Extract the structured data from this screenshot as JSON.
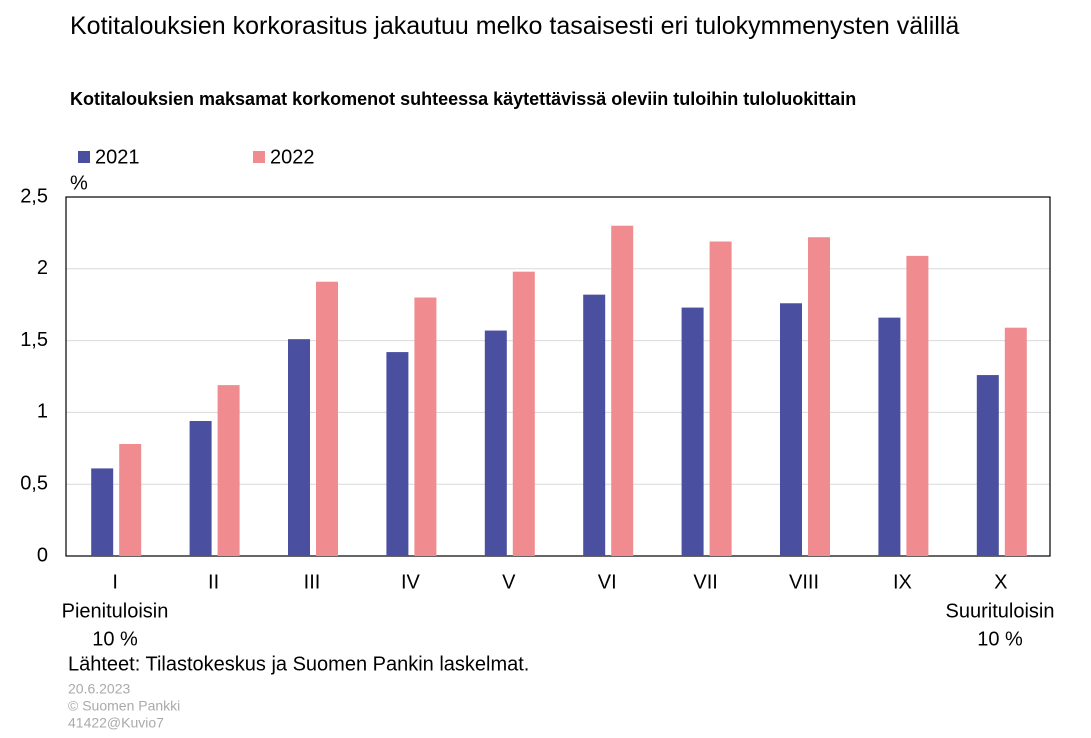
{
  "chart_data": {
    "type": "bar",
    "title": "Kotitalouksien korkorasitus jakautuu melko tasaisesti eri tulokymmenysten välillä",
    "subtitle": "Kotitalouksien maksamat korkomenot suhteessa käytettävissä oleviin tuloihin tuloluokittain",
    "y_label": "%",
    "categories": [
      "I",
      "II",
      "III",
      "IV",
      "V",
      "VI",
      "VII",
      "VIII",
      "IX",
      "X"
    ],
    "series": [
      {
        "name": "2021",
        "color": "#4b4f9f",
        "values": [
          0.61,
          0.94,
          1.51,
          1.42,
          1.57,
          1.82,
          1.73,
          1.76,
          1.66,
          1.26
        ]
      },
      {
        "name": "2022",
        "color": "#f08c90",
        "values": [
          0.78,
          1.19,
          1.91,
          1.8,
          1.98,
          2.3,
          2.19,
          2.22,
          2.09,
          1.59
        ]
      }
    ],
    "ylim": [
      0,
      2.5
    ],
    "yticks": [
      0,
      {
        "value": 0.5,
        "label": "0,5"
      },
      1,
      {
        "value": 1.5,
        "label": "1,5"
      },
      2,
      {
        "value": 2.5,
        "label": "2,5"
      }
    ],
    "grid": true,
    "annotations": [
      "Pienituloisin",
      "10 %",
      "Suurituloisin",
      "10 %"
    ],
    "source": "Lähteet: Tilastokeskus ja Suomen Pankin laskelmat.",
    "footer": [
      "20.6.2023",
      "© Suomen Pankki",
      "41422@Kuvio7"
    ]
  }
}
